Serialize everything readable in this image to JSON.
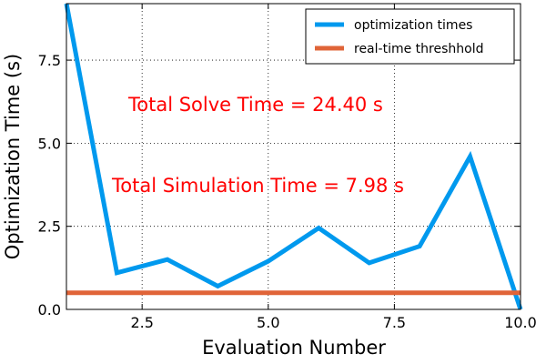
{
  "chart_data": {
    "type": "line",
    "xlabel": "Evaluation Number",
    "ylabel": "Optimization Time (s)",
    "xlim": [
      1,
      10
    ],
    "ylim": [
      0,
      9.2
    ],
    "x_ticks": [
      2.5,
      5.0,
      7.5,
      10.0
    ],
    "x_tick_labels": [
      "2.5",
      "5.0",
      "7.5",
      "10.0"
    ],
    "y_ticks": [
      0.0,
      2.5,
      5.0,
      7.5
    ],
    "y_tick_labels": [
      "0.0",
      "2.5",
      "5.0",
      "7.5"
    ],
    "grid": true,
    "legend_placement": "top-right",
    "series": [
      {
        "name": "optimization times",
        "color": "#0099ee",
        "x": [
          1,
          2,
          3,
          4,
          5,
          6,
          7,
          8,
          9,
          10
        ],
        "y": [
          9.2,
          1.1,
          1.5,
          0.7,
          1.45,
          2.45,
          1.4,
          1.9,
          4.6,
          0.0
        ]
      },
      {
        "name": "real-time threshhold",
        "color": "#e06438",
        "x": [
          1,
          10
        ],
        "y": [
          0.5,
          0.5
        ]
      }
    ],
    "annotations": [
      {
        "text": "Total Solve Time  = 24.40 s",
        "color": "#ff0000"
      },
      {
        "text": "Total Simulation Time = 7.98 s",
        "color": "#ff0000"
      }
    ]
  }
}
